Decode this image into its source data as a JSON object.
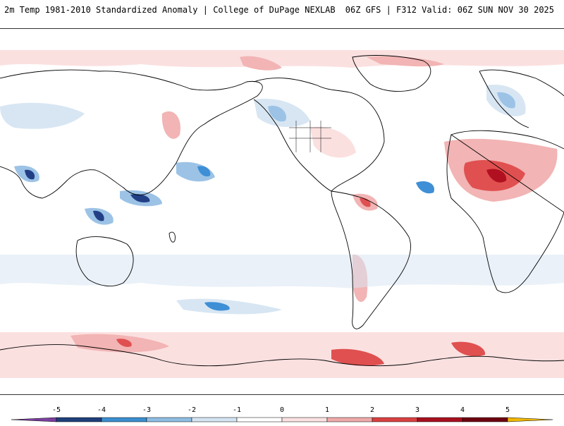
{
  "header": {
    "title": "2m Temp 1981-2010 Standardized Anomaly | College of DuPage NEXLAB",
    "run_info": "06Z GFS | F312 Valid: 06Z SUN NOV 30 2025"
  },
  "colorbar": {
    "ticks": [
      "-5",
      "-4",
      "-3",
      "-2",
      "-1",
      "0",
      "1",
      "2",
      "3",
      "4",
      "5"
    ],
    "colors": [
      "#7b3fa0",
      "#1f3f7a",
      "#3b8fd0",
      "#8fbde3",
      "#d4e4f2",
      "#ffffff",
      "#fbe1e1",
      "#f0aaaa",
      "#d94040",
      "#a80f1f",
      "#6e0010",
      "#f2b800"
    ]
  },
  "map_colors": {
    "ocean": "#ffffff",
    "coast": "#000000",
    "light_blue": "#d8e6f3",
    "mid_blue": "#9cc3e6",
    "strong_blue": "#3f8fd6",
    "deep_blue": "#223f86",
    "light_red": "#fbe0e0",
    "mid_red": "#f2b4b4",
    "strong_red": "#e05050",
    "deep_red": "#b01020"
  }
}
